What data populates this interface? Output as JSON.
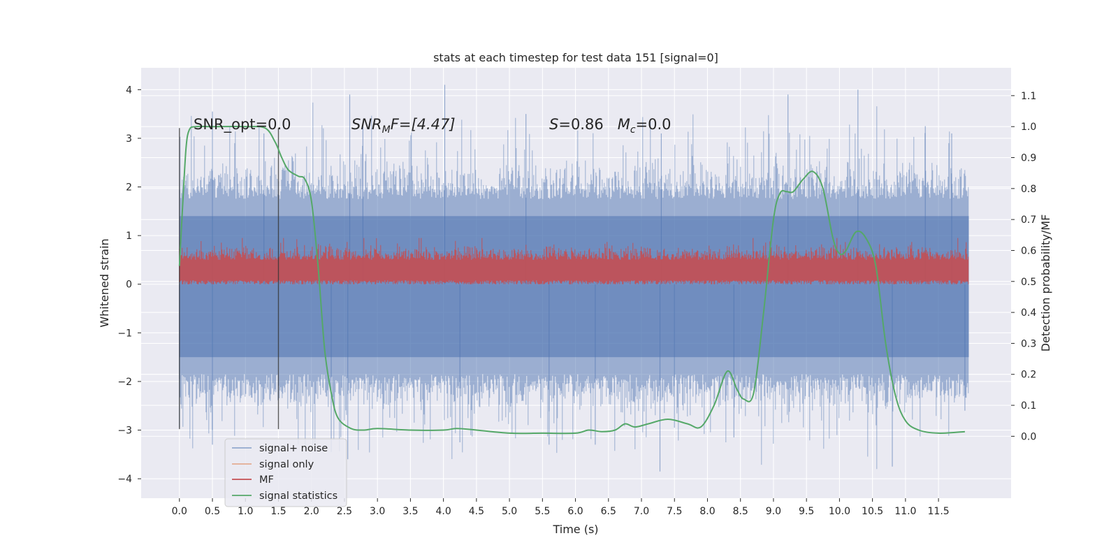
{
  "chart_data": {
    "type": "line",
    "title": "stats at each timestep for test data 151 [signal=0]",
    "xlabel": "Time (s)",
    "ylabel": "Whitened strain",
    "ylabel_right": "Detection probability/MF",
    "xlim": [
      -0.58,
      12.6
    ],
    "ylim": [
      -4.4,
      4.45
    ],
    "ylim_right": [
      -0.2,
      1.19
    ],
    "x_ticks": [
      "0.0",
      "0.5",
      "1.0",
      "1.5",
      "2.0",
      "2.5",
      "3.0",
      "3.5",
      "4.0",
      "4.5",
      "5.0",
      "5.5",
      "6.0",
      "6.5",
      "7.0",
      "7.5",
      "8.0",
      "8.5",
      "9.0",
      "9.5",
      "10.0",
      "10.5",
      "11.0",
      "11.5"
    ],
    "y_ticks": [
      "4",
      "3",
      "2",
      "1",
      "0",
      "−1",
      "−2",
      "−3",
      "−4"
    ],
    "y_ticks_right": [
      "1.1",
      "1.0",
      "0.9",
      "0.8",
      "0.7",
      "0.6",
      "0.5",
      "0.4",
      "0.3",
      "0.2",
      "0.1",
      "0.0"
    ],
    "grid": true,
    "legend_position": "lower-left",
    "annotations": {
      "snr_opt": "SNR_opt=0.0",
      "snr_mf_label": "SNR",
      "snr_mf_sub": "M",
      "snr_mf_value": "F=[4.47]",
      "s_label": "S",
      "s_value": "=0.86",
      "mc_label": "M",
      "mc_sub": "c",
      "mc_value": "=0.0"
    },
    "vertical_lines_x": [
      0.0,
      1.5
    ],
    "series": [
      {
        "name": "signal+ noise",
        "color": "#4c72b0",
        "axis": "left",
        "alpha": 0.5,
        "x_range": [
          0.0,
          11.96
        ],
        "mean": -0.05,
        "typical_min": -2.5,
        "typical_max": 2.5,
        "extreme_min": -3.8,
        "extreme_max": 4.1
      },
      {
        "name": "signal only",
        "color": "#dd8452",
        "axis": "left",
        "values": []
      },
      {
        "name": "MF",
        "color": "#c44e52",
        "axis": "left",
        "x_range": [
          0.0,
          11.96
        ],
        "min": 0.0,
        "max": 0.95,
        "mean": 0.3
      },
      {
        "name": "signal statistics",
        "color": "#55a868",
        "axis": "right",
        "x": [
          0.0,
          0.05,
          0.1,
          0.15,
          0.25,
          0.5,
          1.0,
          1.3,
          1.45,
          1.55,
          1.65,
          1.8,
          1.9,
          2.0,
          2.1,
          2.2,
          2.3,
          2.4,
          2.6,
          2.8,
          3.0,
          3.5,
          4.0,
          4.2,
          4.5,
          5.0,
          5.5,
          6.0,
          6.2,
          6.4,
          6.6,
          6.75,
          6.9,
          7.1,
          7.4,
          7.7,
          7.9,
          8.1,
          8.3,
          8.45,
          8.55,
          8.7,
          8.85,
          9.0,
          9.1,
          9.2,
          9.3,
          9.45,
          9.6,
          9.75,
          9.9,
          10.0,
          10.1,
          10.25,
          10.4,
          10.55,
          10.7,
          10.85,
          11.0,
          11.2,
          11.5,
          11.9
        ],
        "values": [
          0.55,
          0.75,
          0.93,
          0.99,
          1.0,
          1.0,
          1.0,
          0.995,
          0.95,
          0.9,
          0.86,
          0.84,
          0.83,
          0.76,
          0.55,
          0.28,
          0.14,
          0.06,
          0.025,
          0.02,
          0.025,
          0.02,
          0.02,
          0.025,
          0.02,
          0.01,
          0.01,
          0.01,
          0.02,
          0.015,
          0.02,
          0.04,
          0.03,
          0.04,
          0.055,
          0.04,
          0.03,
          0.1,
          0.21,
          0.15,
          0.12,
          0.14,
          0.4,
          0.7,
          0.785,
          0.79,
          0.79,
          0.83,
          0.855,
          0.8,
          0.64,
          0.59,
          0.6,
          0.66,
          0.64,
          0.55,
          0.3,
          0.13,
          0.05,
          0.02,
          0.01,
          0.015
        ]
      }
    ]
  }
}
